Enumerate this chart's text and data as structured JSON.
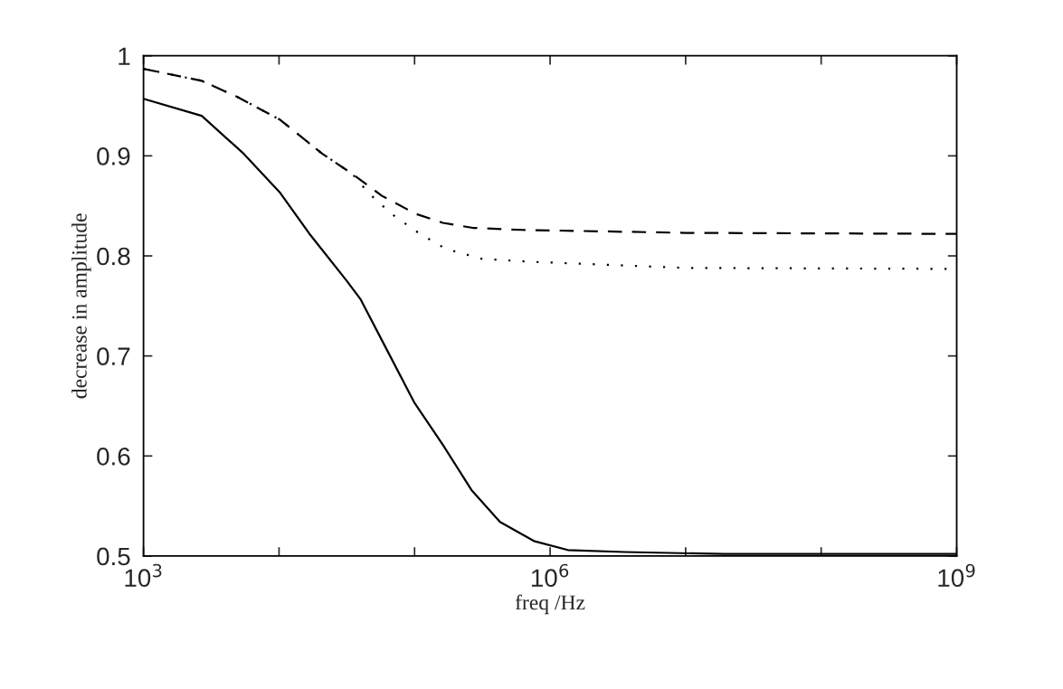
{
  "chart_data": {
    "type": "line",
    "xlabel": "freq /Hz",
    "ylabel": "decrease in amplitude",
    "log": "x",
    "grid": false,
    "legend": false,
    "xlim": [
      1000,
      1000000000
    ],
    "xticks": [
      {
        "value": 1000,
        "label": "10$^{3}$"
      },
      {
        "value": 10000,
        "label": null
      },
      {
        "value": 100000,
        "label": null
      },
      {
        "value": 1000000,
        "label": "10$^{6}$"
      },
      {
        "value": 10000000,
        "label": null
      },
      {
        "value": 100000000,
        "label": null
      },
      {
        "value": 1000000000,
        "label": "10$^{9}$"
      }
    ],
    "ylim": [
      0.5,
      1
    ],
    "yticks": [
      0.5,
      0.6,
      0.7,
      0.8,
      0.9,
      1
    ],
    "series": [
      {
        "color": "#000000",
        "line_style": "solid",
        "x": [
          1000,
          2690,
          5500,
          10200,
          17000,
          31600,
          39800,
          63100,
          100000,
          162000,
          263000,
          427000,
          759000,
          1350000,
          3550000,
          19100000,
          1000000000
        ],
        "values": [
          0.957,
          0.94,
          0.902,
          0.863,
          0.821,
          0.775,
          0.757,
          0.705,
          0.653,
          0.611,
          0.566,
          0.534,
          0.515,
          0.506,
          0.504,
          0.502,
          0.502
        ]
      },
      {
        "color": "#000000",
        "line_style": "dashed",
        "x": [
          1000,
          2690,
          4900,
          10200,
          20900,
          34700,
          57500,
          102000,
          162000,
          269000,
          617000,
          10000000,
          1000000000
        ],
        "values": [
          0.987,
          0.975,
          0.959,
          0.936,
          0.902,
          0.882,
          0.86,
          0.842,
          0.833,
          0.828,
          0.826,
          0.823,
          0.822
        ]
      },
      {
        "color": "#000000",
        "line_style": "dotted",
        "x": [
          1000,
          2690,
          4900,
          10200,
          20900,
          34700,
          45700,
          67600,
          107000,
          170000,
          316000,
          759000,
          10000000,
          1000000000
        ],
        "values": [
          0.987,
          0.975,
          0.959,
          0.936,
          0.902,
          0.882,
          0.863,
          0.842,
          0.823,
          0.807,
          0.797,
          0.794,
          0.788,
          0.787
        ]
      }
    ]
  }
}
